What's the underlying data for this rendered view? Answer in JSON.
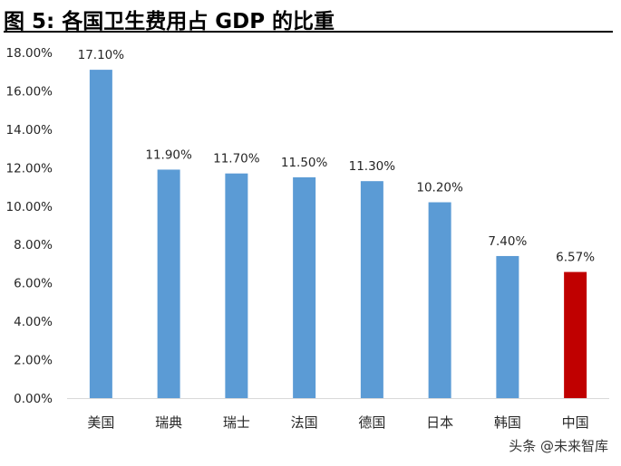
{
  "chart_data": {
    "type": "bar",
    "title": "图 5:  各国卫生费用占 GDP 的比重",
    "categories": [
      "美国",
      "瑞典",
      "瑞士",
      "法国",
      "德国",
      "日本",
      "韩国",
      "中国"
    ],
    "values": [
      17.1,
      11.9,
      11.7,
      11.5,
      11.3,
      10.2,
      7.4,
      6.57
    ],
    "data_labels": [
      "17.10%",
      "11.90%",
      "11.70%",
      "11.50%",
      "11.30%",
      "10.20%",
      "7.40%",
      "6.57%"
    ],
    "bar_colors": [
      "#5b9bd5",
      "#5b9bd5",
      "#5b9bd5",
      "#5b9bd5",
      "#5b9bd5",
      "#5b9bd5",
      "#5b9bd5",
      "#c00000"
    ],
    "ylim": [
      0,
      18
    ],
    "y_ticks": [
      0,
      2,
      4,
      6,
      8,
      10,
      12,
      14,
      16,
      18
    ],
    "y_tick_labels": [
      "0.00%",
      "2.00%",
      "4.00%",
      "6.00%",
      "8.00%",
      "10.00%",
      "12.00%",
      "14.00%",
      "16.00%",
      "18.00%"
    ],
    "xlabel": "",
    "ylabel": "",
    "grid": false,
    "legend": "none"
  },
  "watermark": "头条 @未来智库"
}
